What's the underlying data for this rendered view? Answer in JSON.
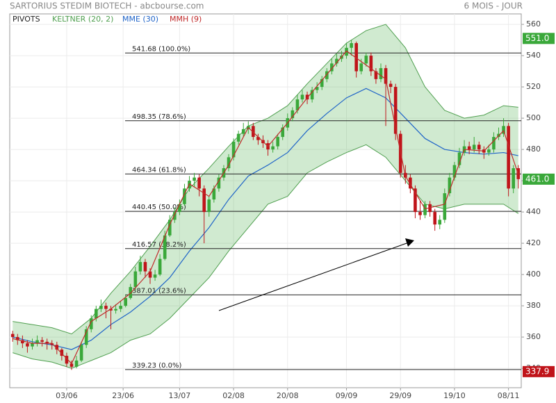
{
  "chart_data": {
    "type": "candlestick",
    "title": "SARTORIUS STEDIM BIOTECH - abcbourse.com",
    "period": "6 MOIS - JOUR",
    "xlim": [
      -0.6,
      103.6
    ],
    "ylim": [
      327.6,
      566.7
    ],
    "yticks": [
      340,
      360,
      380,
      400,
      420,
      440,
      460,
      480,
      500,
      520,
      540,
      560
    ],
    "xticks": [
      {
        "value": 11,
        "label": "03/06"
      },
      {
        "value": 22.5,
        "label": "23/06"
      },
      {
        "value": 34,
        "label": "13/07"
      },
      {
        "value": 45,
        "label": "02/08"
      },
      {
        "value": 56,
        "label": "20/08"
      },
      {
        "value": 68,
        "label": "09/09"
      },
      {
        "value": 79,
        "label": "29/09"
      },
      {
        "value": 90,
        "label": "19/10"
      },
      {
        "value": 101,
        "label": "08/11"
      }
    ],
    "grid": true,
    "up_color": "#3aa83a",
    "down_color": "#c0141a",
    "candles": [
      [
        362,
        364,
        357,
        360
      ],
      [
        360,
        362,
        355,
        358
      ],
      [
        358,
        361,
        353,
        356
      ],
      [
        356,
        358,
        350,
        354
      ],
      [
        354,
        359,
        352,
        356
      ],
      [
        356,
        361,
        354,
        358
      ],
      [
        358,
        360,
        354,
        357
      ],
      [
        357,
        359,
        352,
        356
      ],
      [
        356,
        358,
        352,
        355
      ],
      [
        355,
        357,
        349,
        352
      ],
      [
        352,
        353,
        345,
        348
      ],
      [
        348,
        350,
        341,
        343
      ],
      [
        343,
        345,
        339,
        341
      ],
      [
        341,
        348,
        340,
        345
      ],
      [
        345,
        357,
        344,
        355
      ],
      [
        355,
        367,
        353,
        365
      ],
      [
        365,
        374,
        363,
        372
      ],
      [
        372,
        380,
        370,
        378
      ],
      [
        378,
        384,
        376,
        380
      ],
      [
        380,
        382,
        372,
        378
      ],
      [
        378,
        380,
        365,
        377
      ],
      [
        377,
        381,
        375,
        378
      ],
      [
        378,
        383,
        376,
        380
      ],
      [
        380,
        387,
        379,
        385
      ],
      [
        385,
        394,
        384,
        392
      ],
      [
        392,
        405,
        390,
        402
      ],
      [
        402,
        412,
        400,
        408
      ],
      [
        408,
        410,
        398,
        402
      ],
      [
        402,
        404,
        394,
        398
      ],
      [
        398,
        403,
        396,
        400
      ],
      [
        400,
        413,
        399,
        410
      ],
      [
        410,
        428,
        409,
        425
      ],
      [
        425,
        438,
        424,
        435
      ],
      [
        435,
        443,
        433,
        440
      ],
      [
        440,
        448,
        438,
        445
      ],
      [
        445,
        458,
        444,
        455
      ],
      [
        455,
        463,
        453,
        460
      ],
      [
        460,
        465,
        456,
        462
      ],
      [
        462,
        464,
        450,
        455
      ],
      [
        455,
        457,
        420,
        440
      ],
      [
        440,
        450,
        437,
        448
      ],
      [
        448,
        457,
        446,
        455
      ],
      [
        455,
        464,
        453,
        462
      ],
      [
        462,
        470,
        460,
        468
      ],
      [
        468,
        477,
        466,
        475
      ],
      [
        475,
        487,
        473,
        485
      ],
      [
        485,
        492,
        483,
        490
      ],
      [
        490,
        497,
        488,
        493
      ],
      [
        493,
        498,
        490,
        495
      ],
      [
        495,
        497,
        486,
        488
      ],
      [
        488,
        490,
        483,
        486
      ],
      [
        486,
        489,
        481,
        484
      ],
      [
        484,
        486,
        476,
        480
      ],
      [
        480,
        485,
        478,
        482
      ],
      [
        482,
        490,
        480,
        488
      ],
      [
        488,
        496,
        486,
        494
      ],
      [
        494,
        503,
        492,
        500
      ],
      [
        500,
        507,
        498,
        505
      ],
      [
        505,
        515,
        503,
        512
      ],
      [
        512,
        518,
        510,
        515
      ],
      [
        515,
        517,
        509,
        512
      ],
      [
        512,
        520,
        510,
        518
      ],
      [
        518,
        523,
        516,
        520
      ],
      [
        520,
        527,
        518,
        525
      ],
      [
        525,
        532,
        523,
        530
      ],
      [
        530,
        538,
        528,
        535
      ],
      [
        535,
        541,
        533,
        538
      ],
      [
        538,
        543,
        536,
        540
      ],
      [
        540,
        548,
        538,
        545
      ],
      [
        545,
        550,
        540,
        548
      ],
      [
        548,
        549,
        526,
        530
      ],
      [
        530,
        538,
        528,
        535
      ],
      [
        535,
        542,
        533,
        540
      ],
      [
        540,
        542,
        527,
        530
      ],
      [
        530,
        532,
        522,
        525
      ],
      [
        525,
        535,
        523,
        532
      ],
      [
        532,
        534,
        495,
        522
      ],
      [
        522,
        524,
        516,
        520
      ],
      [
        520,
        522,
        486,
        490
      ],
      [
        490,
        492,
        462,
        465
      ],
      [
        465,
        470,
        458,
        462
      ],
      [
        462,
        464,
        452,
        455
      ],
      [
        455,
        457,
        436,
        440
      ],
      [
        440,
        447,
        435,
        438
      ],
      [
        438,
        447,
        436,
        445
      ],
      [
        445,
        447,
        437,
        440
      ],
      [
        440,
        442,
        428,
        432
      ],
      [
        432,
        438,
        429,
        435
      ],
      [
        435,
        455,
        433,
        452
      ],
      [
        452,
        465,
        450,
        462
      ],
      [
        462,
        472,
        460,
        470
      ],
      [
        470,
        481,
        468,
        478
      ],
      [
        478,
        486,
        476,
        482
      ],
      [
        482,
        485,
        477,
        480
      ],
      [
        480,
        488,
        478,
        483
      ],
      [
        483,
        485,
        477,
        480
      ],
      [
        480,
        482,
        474,
        478
      ],
      [
        478,
        483,
        476,
        480
      ],
      [
        480,
        491,
        478,
        488
      ],
      [
        488,
        494,
        486,
        490
      ],
      [
        490,
        500,
        488,
        495
      ],
      [
        495,
        497,
        450,
        455
      ],
      [
        455,
        470,
        452,
        468
      ],
      [
        468,
        470,
        455,
        461
      ]
    ],
    "x": [
      0,
      4,
      8,
      12,
      16,
      20,
      24,
      28,
      32,
      36,
      40,
      44,
      48,
      52,
      56,
      60,
      64,
      68,
      72,
      76,
      80,
      84,
      88,
      92,
      96,
      100,
      103
    ],
    "keltner": {
      "name": "KELTNER (20, 2)",
      "color": "#4f9f4f",
      "fill": "rgba(110,190,110,0.32)",
      "upper": [
        370,
        368,
        366,
        362,
        372,
        388,
        402,
        418,
        435,
        455,
        468,
        482,
        495,
        500,
        508,
        522,
        535,
        548,
        556,
        560,
        545,
        520,
        505,
        500,
        502,
        508,
        507
      ],
      "lower": [
        350,
        346,
        344,
        340,
        345,
        350,
        358,
        362,
        372,
        385,
        398,
        415,
        430,
        445,
        450,
        465,
        472,
        478,
        483,
        475,
        460,
        445,
        442,
        445,
        445,
        445,
        439
      ]
    },
    "series": [
      {
        "name": "MME (30)",
        "color": "#1f64c8",
        "values": [
          360,
          357,
          355,
          352,
          358,
          368,
          376,
          386,
          398,
          415,
          430,
          448,
          463,
          470,
          478,
          492,
          503,
          513,
          519,
          513,
          500,
          487,
          480,
          478,
          477,
          478,
          476
        ]
      },
      {
        "name": "MMH (9)",
        "color": "#c02a2a",
        "values": [
          359,
          356,
          356,
          343,
          370,
          378,
          388,
          402,
          432,
          458,
          450,
          470,
          494,
          482,
          497,
          513,
          528,
          543,
          534,
          525,
          463,
          442,
          445,
          480,
          479,
          492,
          464
        ]
      }
    ],
    "pivots": {
      "name": "PIVOTS",
      "values": [
        541.68,
        498.35,
        464.34,
        440.45,
        416.57,
        387.01,
        339.23
      ],
      "value_labels": [
        "541.68  (100.0%)",
        "498.35  (78.6%)",
        "464.34  (61.8%)",
        "440.45  (50.0%)",
        "416.57  (38.2%)",
        "387.01  (23.6%)",
        "339.23  (0.0%)"
      ]
    },
    "price_tags": [
      {
        "value": 551.0,
        "label": "551.0",
        "color": "#3aa83a"
      },
      {
        "value": 461.0,
        "label": "461.0",
        "color": "#3aa83a"
      },
      {
        "value": 337.9,
        "label": "337.9",
        "color": "#c0141a"
      }
    ]
  }
}
